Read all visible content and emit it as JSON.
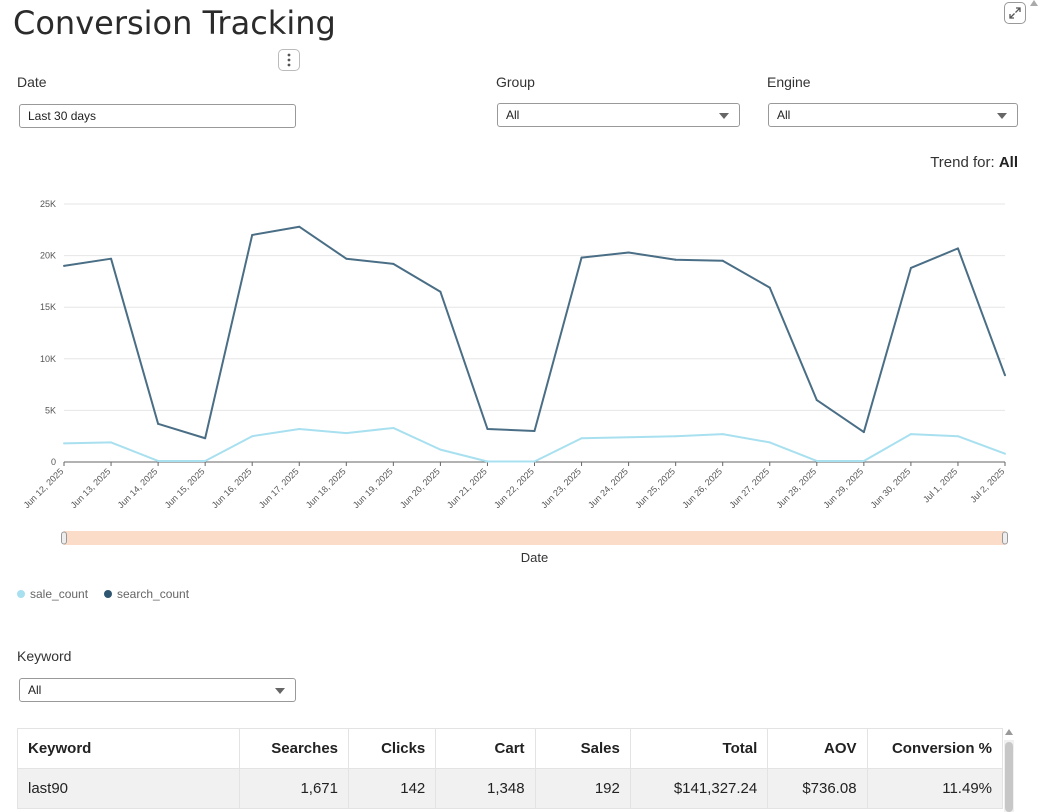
{
  "page": {
    "title": "Conversion Tracking"
  },
  "filters": {
    "date": {
      "label": "Date",
      "value": "Last 30 days"
    },
    "group": {
      "label": "Group",
      "value": "All"
    },
    "engine": {
      "label": "Engine",
      "value": "All"
    },
    "keyword": {
      "label": "Keyword",
      "value": "All"
    }
  },
  "trend": {
    "prefix": "Trend for:",
    "value": "All"
  },
  "legend": [
    {
      "name": "sale_count",
      "color": "#a8e0f0"
    },
    {
      "name": "search_count",
      "color": "#2e5670"
    }
  ],
  "chart_data": {
    "type": "line",
    "xlabel": "Date",
    "ylabel": "",
    "ylim": [
      0,
      25000
    ],
    "yticks": [
      "0",
      "5K",
      "10K",
      "15K",
      "20K",
      "25K"
    ],
    "grid": true,
    "legend_position": "bottom-left",
    "x": [
      "Jun 12, 2025",
      "Jun 13, 2025",
      "Jun 14, 2025",
      "Jun 15, 2025",
      "Jun 16, 2025",
      "Jun 17, 2025",
      "Jun 18, 2025",
      "Jun 19, 2025",
      "Jun 20, 2025",
      "Jun 21, 2025",
      "Jun 22, 2025",
      "Jun 23, 2025",
      "Jun 24, 2025",
      "Jun 25, 2025",
      "Jun 26, 2025",
      "Jun 27, 2025",
      "Jun 28, 2025",
      "Jun 29, 2025",
      "Jun 30, 2025",
      "Jul 1, 2025",
      "Jul 2, 2025"
    ],
    "series": [
      {
        "name": "search_count",
        "color": "#4a6e85",
        "values": [
          19000,
          19700,
          3700,
          2300,
          22000,
          22800,
          19700,
          19200,
          16500,
          3200,
          3000,
          19800,
          20300,
          19600,
          19500,
          16900,
          6000,
          2900,
          18800,
          20700,
          8400
        ]
      },
      {
        "name": "sale_count",
        "color": "#a8e0f0",
        "values": [
          1800,
          1900,
          100,
          100,
          2500,
          3200,
          2800,
          3300,
          1200,
          50,
          50,
          2300,
          2400,
          2500,
          2700,
          1900,
          100,
          100,
          2700,
          2500,
          800
        ]
      }
    ]
  },
  "table": {
    "columns": [
      "Keyword",
      "Searches",
      "Clicks",
      "Cart",
      "Sales",
      "Total",
      "AOV",
      "Conversion %"
    ],
    "rows": [
      [
        "last90",
        "1,671",
        "142",
        "1,348",
        "192",
        "$141,327.24",
        "$736.08",
        "11.49%"
      ]
    ]
  }
}
